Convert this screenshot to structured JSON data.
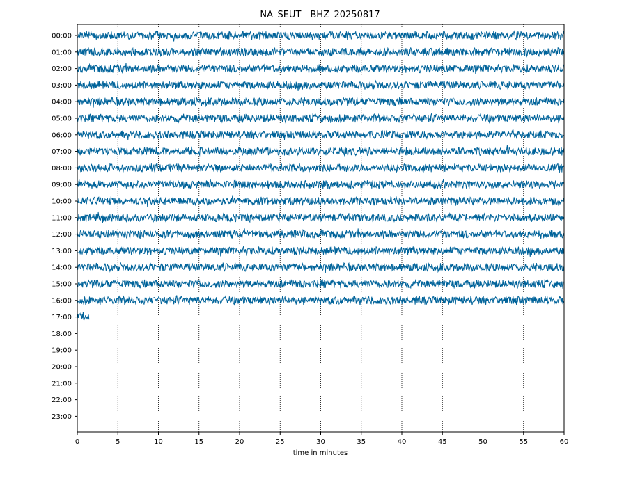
{
  "chart_data": {
    "type": "line",
    "title": "NA_SEUT__BHZ_20250817",
    "xlabel": "time in minutes",
    "ylabel": "",
    "xlim": [
      0,
      60
    ],
    "x_ticks": [
      "0",
      "5",
      "10",
      "15",
      "20",
      "25",
      "30",
      "35",
      "40",
      "45",
      "50",
      "55",
      "60"
    ],
    "y_tick_labels": [
      "00:00",
      "01:00",
      "02:00",
      "03:00",
      "04:00",
      "05:00",
      "06:00",
      "07:00",
      "08:00",
      "09:00",
      "10:00",
      "11:00",
      "12:00",
      "13:00",
      "14:00",
      "15:00",
      "16:00",
      "17:00",
      "18:00",
      "19:00",
      "20:00",
      "21:00",
      "22:00",
      "23:00"
    ],
    "grid": "vertical dotted at every 5 minutes",
    "trace_color": "#00639a",
    "series": [
      {
        "hour": "00:00",
        "minutes_recorded": 60
      },
      {
        "hour": "01:00",
        "minutes_recorded": 60
      },
      {
        "hour": "02:00",
        "minutes_recorded": 60
      },
      {
        "hour": "03:00",
        "minutes_recorded": 60
      },
      {
        "hour": "04:00",
        "minutes_recorded": 60
      },
      {
        "hour": "05:00",
        "minutes_recorded": 60
      },
      {
        "hour": "06:00",
        "minutes_recorded": 60
      },
      {
        "hour": "07:00",
        "minutes_recorded": 60
      },
      {
        "hour": "08:00",
        "minutes_recorded": 60
      },
      {
        "hour": "09:00",
        "minutes_recorded": 60
      },
      {
        "hour": "10:00",
        "minutes_recorded": 60
      },
      {
        "hour": "11:00",
        "minutes_recorded": 60
      },
      {
        "hour": "12:00",
        "minutes_recorded": 60
      },
      {
        "hour": "13:00",
        "minutes_recorded": 60
      },
      {
        "hour": "14:00",
        "minutes_recorded": 60
      },
      {
        "hour": "15:00",
        "minutes_recorded": 60
      },
      {
        "hour": "16:00",
        "minutes_recorded": 60
      },
      {
        "hour": "17:00",
        "minutes_recorded": 1.5
      }
    ]
  }
}
